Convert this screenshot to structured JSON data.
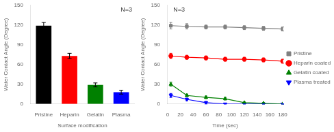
{
  "chart_data": [
    {
      "type": "bar",
      "categories": [
        "Pristine",
        "Heparin",
        "Gelatin",
        "Plasma"
      ],
      "values": [
        119,
        73,
        29,
        18
      ],
      "errors": [
        5,
        4,
        3,
        3
      ],
      "colors": [
        "black",
        "red",
        "green",
        "blue"
      ],
      "xlabel": "Surface modification",
      "ylabel": "Water Contact Angle (Degree)",
      "ylim": [
        0,
        150
      ],
      "yticks": [
        0,
        30,
        60,
        90,
        120,
        150
      ],
      "annotation": "N=3",
      "grid": false
    },
    {
      "type": "line",
      "x": [
        5,
        30,
        60,
        90,
        120,
        150,
        180
      ],
      "series": [
        {
          "name": "Pristine",
          "color": "gray",
          "marker": "square",
          "values": [
            119,
            118,
            117,
            117,
            116,
            115,
            114
          ],
          "errors": [
            5,
            4,
            3,
            3,
            3,
            3,
            3
          ]
        },
        {
          "name": "Heparin coated",
          "color": "red",
          "marker": "circle",
          "values": [
            73,
            71,
            70,
            68,
            68,
            67,
            65
          ],
          "errors": [
            4,
            3,
            3,
            3,
            3,
            3,
            3
          ]
        },
        {
          "name": "Gelatin coated",
          "color": "green",
          "marker": "triangle-up",
          "values": [
            30,
            13,
            10,
            8,
            2,
            1,
            0
          ],
          "errors": [
            3,
            2,
            2,
            2,
            1,
            1,
            0
          ]
        },
        {
          "name": "Plasma treated",
          "color": "blue",
          "marker": "triangle-down",
          "values": [
            13,
            7,
            2,
            0,
            0,
            0,
            0
          ],
          "errors": [
            3,
            2,
            2,
            0,
            0,
            0,
            0
          ]
        }
      ],
      "xlabel": "Time (sec)",
      "ylabel": "Water Contact Angle (Degree)",
      "xlim": [
        0,
        180
      ],
      "xticks": [
        0,
        20,
        40,
        60,
        80,
        100,
        120,
        140,
        160,
        180
      ],
      "ylim": [
        0,
        150
      ],
      "yticks": [
        0,
        30,
        60,
        90,
        120,
        150
      ],
      "annotation": "N=3",
      "legend": "right",
      "grid": false
    }
  ]
}
